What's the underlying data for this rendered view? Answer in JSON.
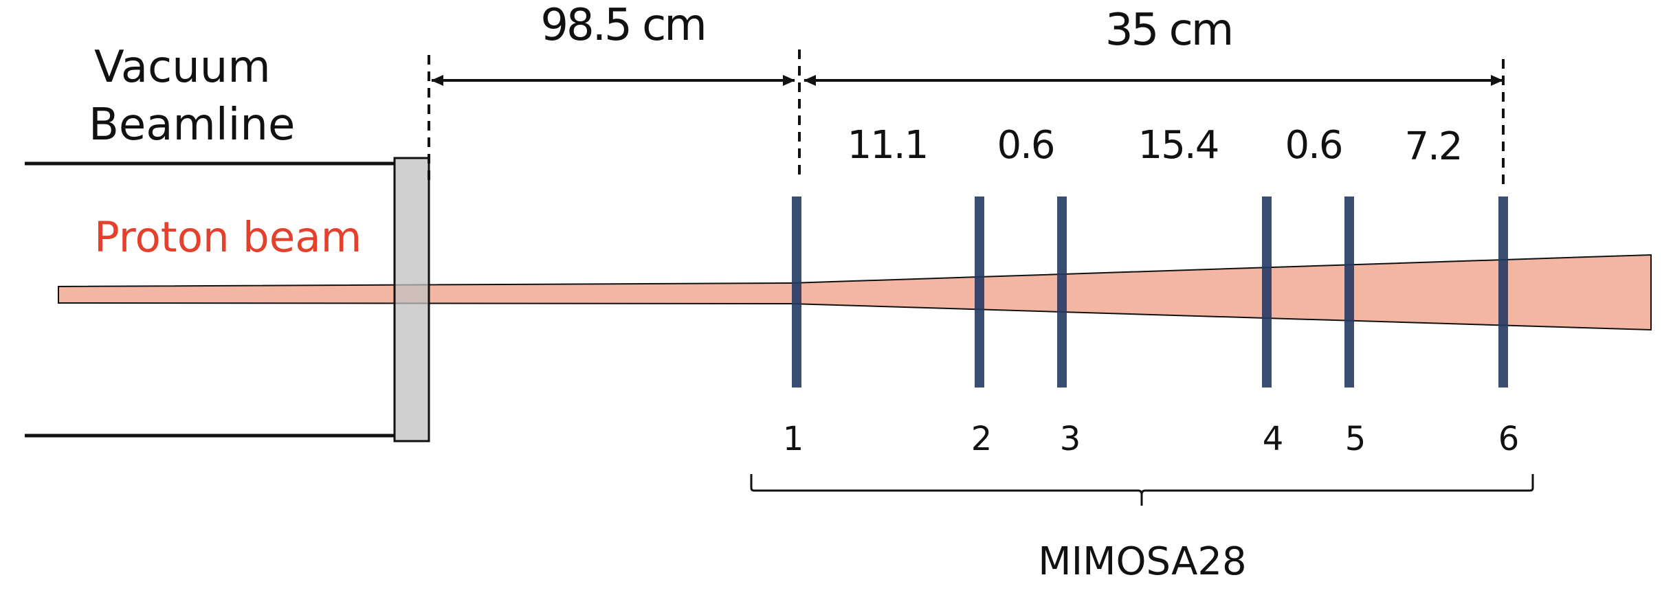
{
  "vacuum_label": {
    "line1": "Vacuum",
    "line2": "Beamline"
  },
  "beam_label": "Proton beam",
  "distances": {
    "to_first_plane": "98.5 cm",
    "telescope_length": "35 cm"
  },
  "plane_spacings": [
    "11.1",
    "0.6",
    "15.4",
    "0.6",
    "7.2"
  ],
  "planes": [
    "1",
    "2",
    "3",
    "4",
    "5",
    "6"
  ],
  "telescope_label": "MIMOSA28",
  "colors": {
    "beam_fill": "#f2b6a2",
    "beam_label": "#e5402b",
    "plane": "#253a63",
    "window": "#c0c0c0",
    "line": "#111111"
  }
}
